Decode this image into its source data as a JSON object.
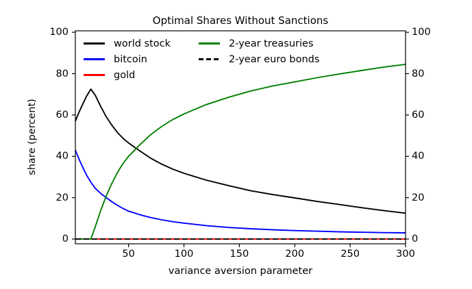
{
  "title": "Optimal Shares Without Sanctions",
  "axes": {
    "xlabel": "variance aversion parameter",
    "ylabel": "share (percent)",
    "xticks": [
      50,
      100,
      150,
      200,
      250,
      300
    ],
    "yticks": [
      0,
      20,
      40,
      60,
      80,
      100
    ],
    "axis_color": "#000000"
  },
  "legend": {
    "columns": [
      [
        {
          "label": "world stock",
          "color": "#000000",
          "dash": false
        },
        {
          "label": "bitcoin",
          "color": "#0000ff",
          "dash": false
        },
        {
          "label": "gold",
          "color": "#ff0000",
          "dash": false
        }
      ],
      [
        {
          "label": "2-year treasuries",
          "color": "#008000",
          "dash": false
        },
        {
          "label": "2-year euro bonds",
          "color": "#000000",
          "dash": true
        }
      ]
    ]
  },
  "chart_data": {
    "type": "line",
    "title": "Optimal Shares Without Sanctions",
    "xlabel": "variance aversion parameter",
    "ylabel": "share (percent)",
    "xlim": [
      2,
      300
    ],
    "ylim": [
      0,
      100
    ],
    "grid": false,
    "legend_position": "upper left, 2 columns, frameless",
    "x": [
      2,
      5,
      8,
      12,
      16,
      20,
      25,
      30,
      35,
      40,
      45,
      50,
      60,
      70,
      80,
      90,
      100,
      120,
      140,
      160,
      180,
      200,
      220,
      240,
      260,
      280,
      300
    ],
    "series": [
      {
        "name": "world stock",
        "color": "#000000",
        "style": "solid",
        "values": [
          57,
          61,
          64.5,
          69,
          72.5,
          69.5,
          64,
          59,
          55,
          51.5,
          48.7,
          46.5,
          42.7,
          39.1,
          36.2,
          33.8,
          31.8,
          28.5,
          25.9,
          23.4,
          21.5,
          19.9,
          18.2,
          16.7,
          15.2,
          13.8,
          12.5
        ]
      },
      {
        "name": "bitcoin",
        "color": "#0000ff",
        "style": "solid",
        "values": [
          43,
          39,
          35.5,
          31,
          27.5,
          24.5,
          22,
          20,
          18,
          16.3,
          14.8,
          13.5,
          11.8,
          10.4,
          9.3,
          8.4,
          7.7,
          6.5,
          5.6,
          5,
          4.5,
          4.1,
          3.8,
          3.5,
          3.3,
          3.1,
          3
        ]
      },
      {
        "name": "gold",
        "color": "#ff0000",
        "style": "solid",
        "values": [
          0,
          0,
          0,
          0,
          0,
          0,
          0,
          0,
          0,
          0,
          0,
          0,
          0,
          0,
          0,
          0,
          0,
          0,
          0,
          0,
          0,
          0,
          0,
          0,
          0,
          0,
          0
        ]
      },
      {
        "name": "2-year treasuries",
        "color": "#008000",
        "style": "solid",
        "values": [
          0,
          0,
          0,
          0,
          0,
          6,
          14,
          21,
          27,
          32.2,
          36.5,
          40,
          45.5,
          50.5,
          54.5,
          57.8,
          60.5,
          65,
          68.5,
          71.6,
          74,
          76,
          78,
          79.8,
          81.5,
          83.1,
          84.5
        ]
      },
      {
        "name": "2-year euro bonds",
        "color": "#000000",
        "style": "dashed",
        "values": [
          0,
          0,
          0,
          0,
          0,
          0,
          0,
          0,
          0,
          0,
          0,
          0,
          0,
          0,
          0,
          0,
          0,
          0,
          0,
          0,
          0,
          0,
          0,
          0,
          0,
          0,
          0
        ]
      }
    ]
  }
}
